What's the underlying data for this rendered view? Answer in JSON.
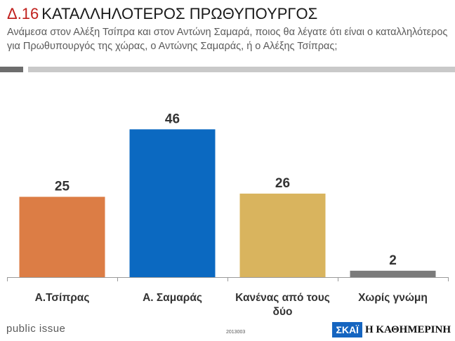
{
  "header": {
    "code": "Δ.16",
    "title": "ΚΑΤΑΛΛΗΛΟΤΕΡΟΣ ΠΡΩΘΥΠΟΥΡΓΟΣ",
    "subtitle": "Ανάμεσα στον Αλέξη Τσίπρα και στον Αντώνη Σαμαρά, ποιος θα λέγατε ότι είναι ο καταλληλότερος για Πρωθυπουργός της χώρας, ο Αντώνης Σαμαράς, ή ο Αλέξης Τσίπρας;"
  },
  "chart_data": {
    "type": "bar",
    "categories": [
      [
        "Α.Τσίπρας"
      ],
      [
        "Α. Σαμαράς"
      ],
      [
        "Κανένας από τους",
        "δύο"
      ],
      [
        "Χωρίς γνώμη"
      ]
    ],
    "values": [
      25,
      46,
      26,
      2
    ],
    "colors": [
      "#dc7d45",
      "#0b69c1",
      "#d9b45e",
      "#7b7b7b"
    ],
    "ylim": [
      0,
      50
    ],
    "grid": false,
    "legend": "none"
  },
  "footer": {
    "brand": "public issue",
    "code": "2013003",
    "logo_left": "ΣΚΑΪ",
    "logo_right": "Η ΚΑΘΗΜΕΡΙΝΗ"
  }
}
